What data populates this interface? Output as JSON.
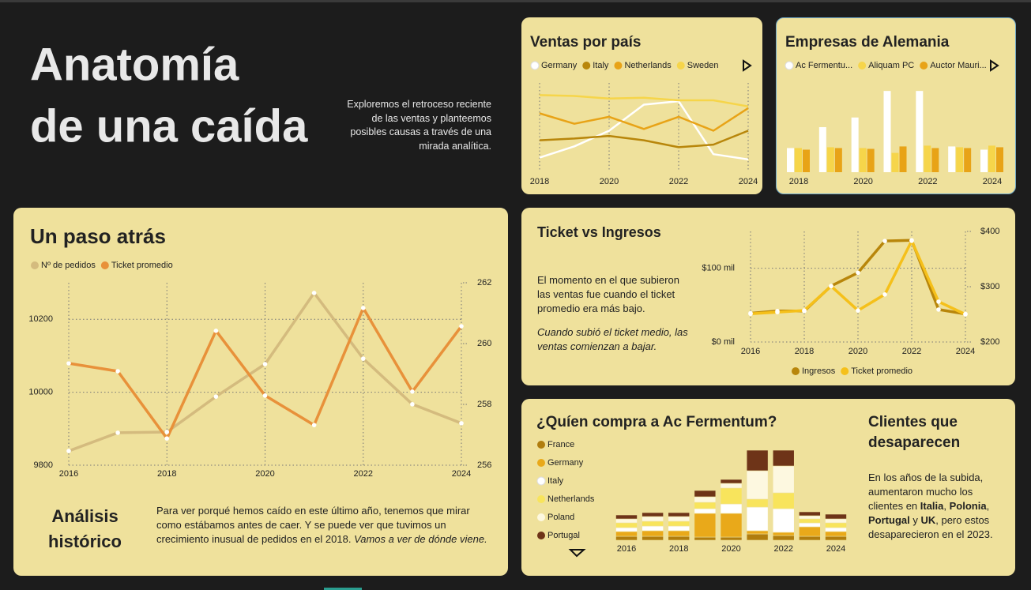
{
  "header": {
    "title_lines": [
      "Anatomía",
      "de una caída"
    ],
    "description": "Exploremos el retroceso reciente de las ventas y planteemos posibles causas a través de una mirada analítica."
  },
  "chart_data": [
    {
      "type": "line",
      "title": "Ventas por país",
      "legend": "top",
      "grid": true,
      "x": [
        2018,
        2019,
        2020,
        2021,
        2022,
        2023,
        2024
      ],
      "xticks": [
        2018,
        2020,
        2022,
        2024
      ],
      "ylim": [
        0,
        100
      ],
      "series": [
        {
          "name": "Germany",
          "color": "#ffffff",
          "values": [
            14,
            27,
            45,
            75,
            79,
            18,
            12
          ]
        },
        {
          "name": "Italy",
          "color": "#b8860b",
          "values": [
            34,
            36,
            39,
            34,
            26,
            29,
            45
          ]
        },
        {
          "name": "Netherlands",
          "color": "#e8a317",
          "values": [
            65,
            53,
            61,
            47,
            61,
            45,
            71
          ]
        },
        {
          "name": "Sweden",
          "color": "#f6d54a",
          "values": [
            86,
            85,
            82,
            83,
            80,
            80,
            73
          ]
        }
      ]
    },
    {
      "type": "bar",
      "title": "Empresas de Alemania",
      "legend": "top",
      "grid": false,
      "x": [
        2018,
        2019,
        2020,
        2021,
        2022,
        2023,
        2024
      ],
      "xticks": [
        2018,
        2020,
        2022,
        2024
      ],
      "ylim": [
        0,
        110
      ],
      "series": [
        {
          "name": "Ac Fermentu...",
          "color": "#ffffff",
          "values": [
            30,
            56,
            68,
            101,
            101,
            32,
            28
          ]
        },
        {
          "name": "Aliquam PC",
          "color": "#f6d54a",
          "values": [
            30,
            31,
            30,
            24,
            33,
            31,
            33
          ]
        },
        {
          "name": "Auctor Mauri...",
          "color": "#e8a317",
          "values": [
            28,
            30,
            29,
            32,
            30,
            30,
            31
          ]
        }
      ]
    },
    {
      "type": "line",
      "title": "Un paso atrás",
      "legend": "top",
      "grid": true,
      "markers": true,
      "x": [
        2016,
        2017,
        2018,
        2019,
        2020,
        2021,
        2022,
        2023,
        2024
      ],
      "xticks": [
        2016,
        2018,
        2020,
        2022,
        2024
      ],
      "ylim": [
        9800,
        10300
      ],
      "yticks": [
        9800,
        10000,
        10200
      ],
      "y2lim": [
        256,
        262
      ],
      "y2ticks": [
        256,
        258,
        260,
        262
      ],
      "series": [
        {
          "name": "Nº de pedidos",
          "color": "#d4bb7e",
          "values": [
            9839,
            9889,
            9891,
            9988,
            10077,
            10272,
            10092,
            9967,
            9915
          ]
        },
        {
          "name": "Ticket promedio",
          "color": "#e8913a",
          "axis": "y2",
          "values": [
            259.35,
            259.09,
            256.88,
            260.42,
            258.29,
            257.32,
            261.17,
            258.42,
            260.57
          ]
        }
      ]
    },
    {
      "type": "line",
      "title": "Ticket vs Ingresos",
      "legend": "bottom",
      "grid": true,
      "markers": true,
      "x": [
        2016,
        2017,
        2018,
        2019,
        2020,
        2021,
        2022,
        2023,
        2024
      ],
      "xticks": [
        2016,
        2018,
        2020,
        2022,
        2024
      ],
      "ylim": [
        0,
        150000
      ],
      "yticks": [
        {
          "value": 0,
          "label": "$0 mil"
        },
        {
          "value": 100000,
          "label": "$100 mil"
        }
      ],
      "y2lim": [
        200,
        400
      ],
      "y2ticks": [
        {
          "value": 200,
          "label": "$200"
        },
        {
          "value": 300,
          "label": "$300"
        },
        {
          "value": 400,
          "label": "$400"
        }
      ],
      "series": [
        {
          "name": "Ingresos",
          "color": "#b8860b",
          "values": [
            39000,
            42000,
            42000,
            76000,
            94000,
            137000,
            138000,
            44000,
            38000
          ]
        },
        {
          "name": "Ticket promedio",
          "color": "#f5c01a",
          "axis": "y2",
          "values": [
            251,
            254,
            257,
            301,
            257,
            286,
            383,
            273,
            250
          ]
        }
      ]
    },
    {
      "type": "stacked_bar",
      "title": "¿Quíen compra a Ac Fermentum?",
      "legend": "left",
      "grid": false,
      "x": [
        2016,
        2017,
        2018,
        2019,
        2020,
        2021,
        2022,
        2023,
        2024
      ],
      "xticks": [
        2016,
        2018,
        2020,
        2022,
        2024
      ],
      "ylim": [
        0,
        120
      ],
      "series": [
        {
          "name": "France",
          "color": "#b07d0e",
          "values": [
            5,
            5,
            5,
            4,
            4,
            8,
            6,
            5,
            5
          ]
        },
        {
          "name": "Germany",
          "color": "#e9a91a",
          "values": [
            6,
            7,
            7,
            30,
            30,
            4,
            4,
            12,
            6
          ]
        },
        {
          "name": "Italy",
          "color": "#ffffff",
          "values": [
            5,
            6,
            6,
            6,
            12,
            30,
            30,
            5,
            5
          ]
        },
        {
          "name": "Netherlands",
          "color": "#f8e45c",
          "values": [
            6,
            6,
            6,
            8,
            20,
            10,
            20,
            5,
            6
          ]
        },
        {
          "name": "Poland",
          "color": "#fdf8e0",
          "values": [
            5,
            6,
            6,
            7,
            6,
            36,
            34,
            4,
            5
          ]
        },
        {
          "name": "Portugal",
          "color": "#6e3418",
          "values": [
            5,
            5,
            5,
            8,
            5,
            26,
            20,
            5,
            6
          ]
        }
      ]
    }
  ],
  "analysis": {
    "title": "Análisis histórico",
    "body": "Para ver porqué hemos caído en este último año, tenemos que mirar como estábamos antes de caer.  Y se puede ver que tuvimos un crecimiento inusual de pedidos en el 2018. ",
    "body_italic": "Vamos a ver de dónde viene."
  },
  "ticket_notes": {
    "text": "El momento en el que subieron las ventas fue cuando el ticket promedio era más bajo.",
    "text_italic": "Cuando subió el ticket medio, las ventas comienzan a bajar."
  },
  "clients": {
    "title": "Clientes que desaparecen",
    "body": [
      {
        "text": "En los años de la subida, aumentaron mucho los clientes en "
      },
      {
        "text": "Italia",
        "bold": true
      },
      {
        "text": ", "
      },
      {
        "text": "Polonia",
        "bold": true
      },
      {
        "text": ", "
      },
      {
        "text": "Portugal",
        "bold": true
      },
      {
        "text": " y "
      },
      {
        "text": "UK",
        "bold": true
      },
      {
        "text": ", pero estos desaparecieron en el 2023."
      }
    ]
  }
}
